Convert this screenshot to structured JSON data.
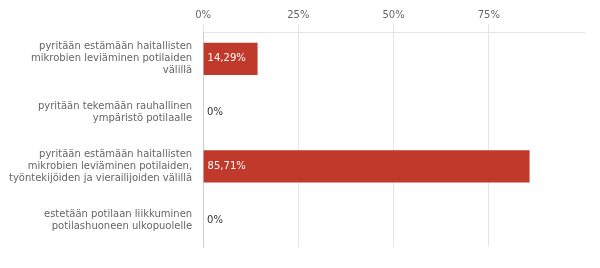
{
  "chart_data": {
    "type": "bar",
    "orientation": "horizontal",
    "categories": [
      "pyritään estämään haitallisten\nmikrobien leviäminen potilaiden\nvälillä",
      "pyritään tekemään rauhallinen\nympäristö potilaalle",
      "pyritään estämään haitallisten\nmikrobien leviäminen potilaiden,\ntyöntekijöiden ja vierailijoiden välillä",
      "estetään potilaan liikkuminen\npotilashuoneen ulkopuolelle"
    ],
    "values": [
      14.29,
      0,
      85.71,
      0
    ],
    "value_labels": [
      "14,29%",
      "0%",
      "85,71%",
      "0%"
    ],
    "data_labels": true,
    "color": "#c0392b",
    "xlim": [
      0,
      100
    ],
    "xticks": [
      {
        "value": 0,
        "label": "0%"
      },
      {
        "value": 25,
        "label": "25%"
      },
      {
        "value": 50,
        "label": "50%"
      },
      {
        "value": 75,
        "label": "75%"
      }
    ],
    "grid": true
  }
}
